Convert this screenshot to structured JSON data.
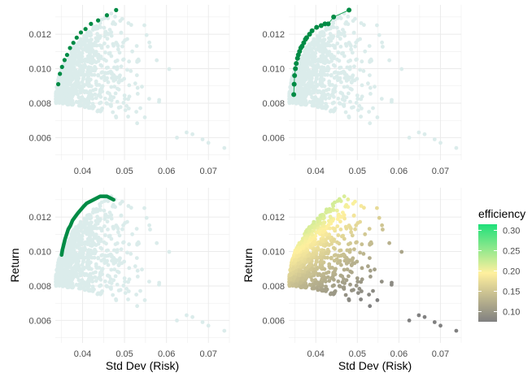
{
  "figure": {
    "legend_title": "efficiency",
    "legend_ticks": [
      "0.30",
      "0.25",
      "0.20",
      "0.15",
      "0.10"
    ],
    "legend_tick_values": [
      0.3,
      0.25,
      0.2,
      0.15,
      0.1
    ],
    "legend_range": [
      0.075,
      0.315
    ],
    "colors": {
      "cloud": "#dbeceb",
      "frontier": "#008b45",
      "frontier_line": "#1ca85a",
      "grid": "#ebebeb",
      "efficiency_high": "#1fe07a",
      "efficiency_mid": "#fff09e",
      "efficiency_low": "#808080"
    }
  },
  "chart_data": [
    {
      "panel": "top-left",
      "type": "scatter",
      "title": "",
      "xlabel": "",
      "ylabel": "",
      "xticks": [
        "0.04",
        "0.05",
        "0.06",
        "0.07"
      ],
      "xtick_values": [
        0.04,
        0.05,
        0.06,
        0.07
      ],
      "yticks": [
        "0.012",
        "0.010",
        "0.008",
        "0.006"
      ],
      "ytick_values": [
        0.012,
        0.01,
        0.008,
        0.006
      ],
      "xlim": [
        0.0335,
        0.075
      ],
      "ylim": [
        0.0047,
        0.0137
      ],
      "series": [
        {
          "name": "portfolios",
          "style": "cloud"
        },
        {
          "name": "frontier",
          "style": "points",
          "x": [
            0.0342,
            0.0346,
            0.0351,
            0.0357,
            0.0363,
            0.037,
            0.0378,
            0.0386,
            0.0396,
            0.0407,
            0.042,
            0.0437,
            0.0458,
            0.048
          ],
          "y": [
            0.0091,
            0.0097,
            0.0101,
            0.0105,
            0.0108,
            0.0112,
            0.0115,
            0.0118,
            0.0121,
            0.0123,
            0.0126,
            0.0128,
            0.0131,
            0.0134
          ]
        }
      ]
    },
    {
      "panel": "top-right",
      "type": "scatter",
      "title": "",
      "xlabel": "",
      "ylabel": "",
      "xticks": [
        "0.04",
        "0.05",
        "0.06",
        "0.07"
      ],
      "xtick_values": [
        0.04,
        0.05,
        0.06,
        0.07
      ],
      "yticks": [
        "0.012",
        "0.010",
        "0.008",
        "0.006"
      ],
      "ytick_values": [
        0.012,
        0.01,
        0.008,
        0.006
      ],
      "xlim": [
        0.0335,
        0.075
      ],
      "ylim": [
        0.0047,
        0.0137
      ],
      "series": [
        {
          "name": "portfolios",
          "style": "cloud"
        },
        {
          "name": "frontier",
          "style": "points-line",
          "x": [
            0.0347,
            0.0348,
            0.0349,
            0.0351,
            0.0353,
            0.0356,
            0.0358,
            0.0361,
            0.0364,
            0.0367,
            0.0371,
            0.0375,
            0.0378,
            0.0385,
            0.0391,
            0.0402,
            0.0413,
            0.0422,
            0.043,
            0.0443,
            0.048
          ],
          "y": [
            0.0085,
            0.0091,
            0.0096,
            0.01,
            0.0103,
            0.0106,
            0.0108,
            0.011,
            0.0112,
            0.0113,
            0.0115,
            0.0117,
            0.0118,
            0.012,
            0.0122,
            0.0124,
            0.0125,
            0.0126,
            0.0126,
            0.013,
            0.0134
          ]
        }
      ]
    },
    {
      "panel": "bottom-left",
      "type": "scatter",
      "title": "",
      "xlabel": "Std Dev (Risk)",
      "ylabel": "Return",
      "xticks": [
        "0.04",
        "0.05",
        "0.06",
        "0.07"
      ],
      "xtick_values": [
        0.04,
        0.05,
        0.06,
        0.07
      ],
      "yticks": [
        "0.012",
        "0.010",
        "0.008",
        "0.006"
      ],
      "ytick_values": [
        0.012,
        0.01,
        0.008,
        0.006
      ],
      "xlim": [
        0.0335,
        0.075
      ],
      "ylim": [
        0.0047,
        0.0137
      ],
      "series": [
        {
          "name": "portfolios",
          "style": "cloud"
        },
        {
          "name": "frontier",
          "style": "thick-curve",
          "x": [
            0.035,
            0.0352,
            0.0355,
            0.0358,
            0.0362,
            0.0366,
            0.0371,
            0.0376,
            0.0382,
            0.0388,
            0.0395,
            0.0402,
            0.041,
            0.0418,
            0.0426,
            0.0434,
            0.0442,
            0.045,
            0.0458,
            0.0466,
            0.0474
          ],
          "y": [
            0.0098,
            0.0101,
            0.0104,
            0.0107,
            0.011,
            0.0113,
            0.0115,
            0.0118,
            0.012,
            0.0122,
            0.0124,
            0.0126,
            0.0128,
            0.0129,
            0.013,
            0.0131,
            0.0132,
            0.0132,
            0.0132,
            0.0131,
            0.013
          ]
        }
      ]
    },
    {
      "panel": "bottom-right",
      "type": "scatter",
      "title": "",
      "xlabel": "Std Dev (Risk)",
      "ylabel": "Return",
      "xticks": [
        "0.04",
        "0.05",
        "0.06",
        "0.07"
      ],
      "xtick_values": [
        0.04,
        0.05,
        0.06,
        0.07
      ],
      "yticks": [
        "0.012",
        "0.010",
        "0.008",
        "0.006"
      ],
      "ytick_values": [
        0.012,
        0.01,
        0.008,
        0.006
      ],
      "xlim": [
        0.0335,
        0.075
      ],
      "ylim": [
        0.0047,
        0.0137
      ],
      "color_by": "efficiency",
      "series": [
        {
          "name": "portfolios",
          "style": "efficiency-colored"
        }
      ]
    }
  ]
}
